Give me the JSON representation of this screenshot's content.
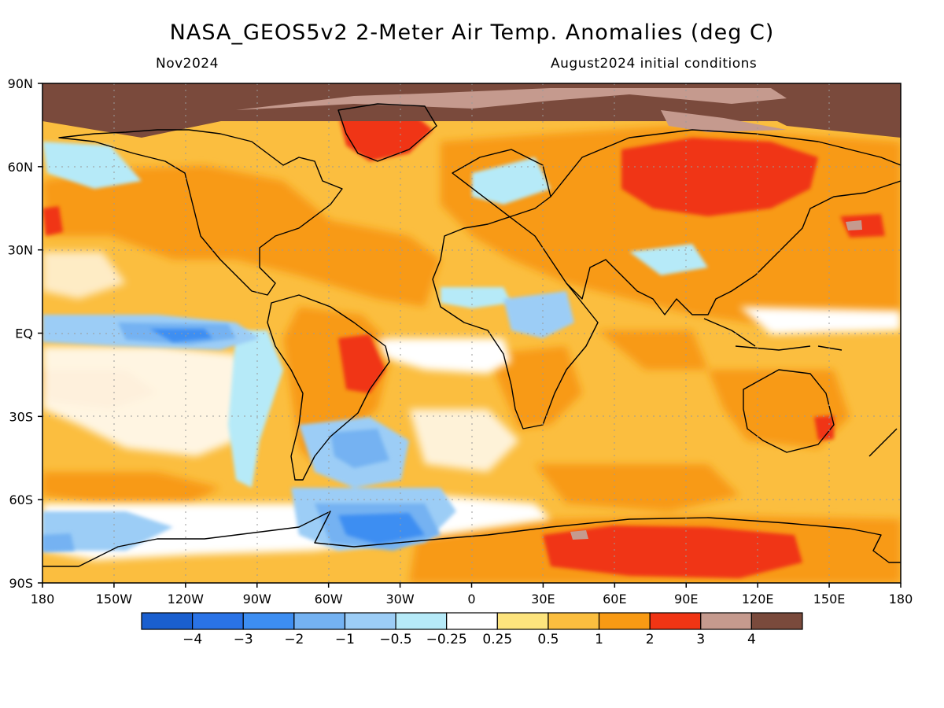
{
  "header": {
    "title": "NASA_GEOS5v2 2-Meter Air Temp. Anomalies (deg C)",
    "period": "Nov2024",
    "init": "August2024 initial conditions"
  },
  "axes": {
    "lat_labels": [
      "90N",
      "60N",
      "30N",
      "EQ",
      "30S",
      "60S",
      "90S"
    ],
    "lat_values": [
      90,
      60,
      30,
      0,
      -30,
      -60,
      -90
    ],
    "lon_labels": [
      "180",
      "150W",
      "120W",
      "90W",
      "60W",
      "30W",
      "0",
      "30E",
      "60E",
      "90E",
      "120E",
      "150E",
      "180"
    ],
    "lon_values": [
      -180,
      -150,
      -120,
      -90,
      -60,
      -30,
      0,
      30,
      60,
      90,
      120,
      150,
      180
    ]
  },
  "colorbar": {
    "colors": [
      "#1a5fcf",
      "#2a73e6",
      "#3d8ef2",
      "#74b2f2",
      "#9ccdf6",
      "#b6eaf8",
      "#ffffff",
      "#fde47d",
      "#fbbe3f",
      "#f89a14",
      "#f03514",
      "#c59a8e",
      "#7a4a3c"
    ],
    "labels": [
      "−4",
      "−3",
      "−2",
      "−1",
      "−0.5",
      "−0.25",
      "0.25",
      "0.5",
      "1",
      "2",
      "3",
      "4"
    ]
  },
  "legend_colors": {
    "ocean_base": "#fbbe3f",
    "coast": "#000000",
    "grid": "#9a9a9a"
  }
}
